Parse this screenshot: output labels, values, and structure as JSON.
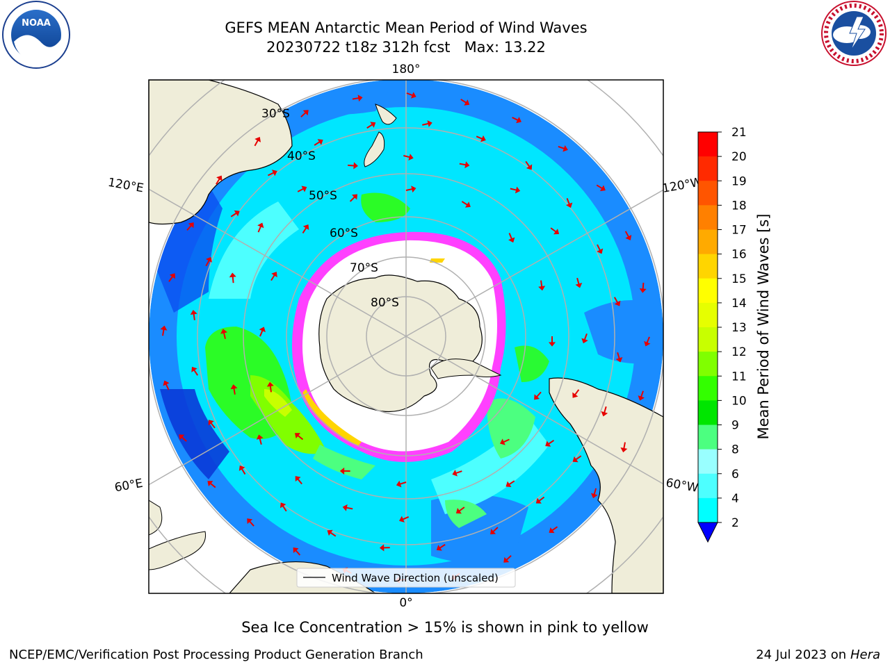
{
  "title": {
    "line1": "GEFS MEAN Antarctic Mean Period of Wind Waves",
    "line2": "20230722 t18z 312h fcst   Max: 13.22"
  },
  "meridian_labels": {
    "top": "180°",
    "bottom": "0°",
    "left_upper": "120°E",
    "left_lower": "60°E",
    "right_upper": "120°W",
    "right_lower": "60°W"
  },
  "latitude_labels": [
    "30°S",
    "40°S",
    "50°S",
    "60°S",
    "70°S",
    "80°S"
  ],
  "legend_label": "Wind Wave Direction (unscaled)",
  "colorbar": {
    "label": "Mean Period of Wind Waves [s]",
    "ticks": [
      "21",
      "20",
      "19",
      "18",
      "17",
      "16",
      "15",
      "14",
      "13",
      "12",
      "11",
      "10",
      "9",
      "8",
      "6",
      "4",
      "2"
    ],
    "colors": [
      "#ff0000",
      "#ff2a00",
      "#ff5500",
      "#ff8000",
      "#ffaa00",
      "#ffd500",
      "#ffff00",
      "#e6ff00",
      "#c8ff00",
      "#80ff00",
      "#33ff00",
      "#00e600",
      "#4cff80",
      "#99ffff",
      "#4dffff",
      "#00ffff",
      "#00e6ff",
      "#0080ff"
    ]
  },
  "sea_ice_note": "Sea Ice Concentration > 15% is shown in pink to yellow",
  "footer": {
    "left": "NCEP/EMC/Verification Post Processing Product Generation Branch",
    "right_date": "24 Jul 2023 on ",
    "right_machine": "Hera"
  },
  "logos": {
    "noaa_text": "NOAA",
    "nws_text": "NATIONAL WEATHER SERVICE"
  }
}
